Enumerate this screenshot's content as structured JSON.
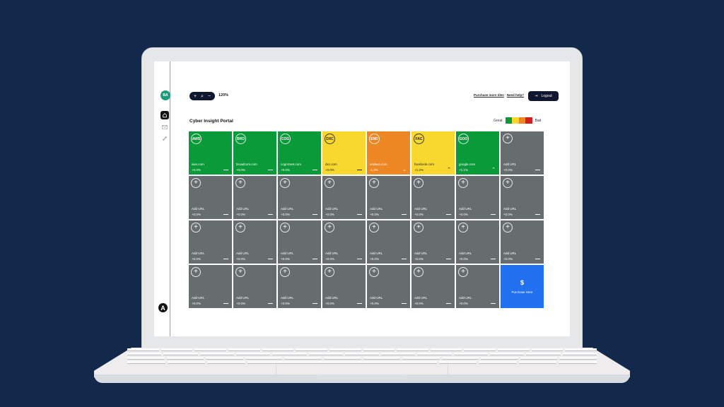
{
  "colors": {
    "background": "#13294b",
    "great": "#0b9a3a",
    "good": "#f8d72f",
    "warn": "#ec8723",
    "bad": "#d11f1f",
    "empty": "#676d6f",
    "purchase": "#2170f0",
    "dark": "#0e1630"
  },
  "sidebar": {
    "avatar_initials": "BA",
    "items": [
      {
        "name": "home",
        "icon": "home-icon",
        "active": true
      },
      {
        "name": "mail",
        "icon": "mail-icon"
      },
      {
        "name": "link",
        "icon": "link-icon"
      }
    ],
    "brand_logo": "A"
  },
  "toolbar": {
    "zoom_in": "+",
    "zoom_search": "⌕",
    "zoom_out": "−",
    "zoom_level": "120%"
  },
  "header": {
    "purchase_more_tiles": "Purchase more tiles",
    "need_help": "Need help?",
    "logout_icon": "⇥",
    "logout_label": "Logout"
  },
  "page": {
    "title": "Cyber Insight Portal",
    "legend": {
      "great_label": "Great",
      "bad_label": "Bad"
    }
  },
  "tiles": [
    {
      "ticker": "AWS",
      "url": "aws.com",
      "change": "+0.0%",
      "trend": "flat",
      "status": "green"
    },
    {
      "ticker": "BRO",
      "url": "broadcom.com",
      "change": "+0.0%",
      "trend": "flat",
      "status": "green"
    },
    {
      "ticker": "COG",
      "url": "cognizant.com",
      "change": "+0.0%",
      "trend": "flat",
      "status": "green"
    },
    {
      "ticker": "DXC",
      "url": "dxc.com",
      "change": "+0.0%",
      "trend": "flat",
      "status": "yellow"
    },
    {
      "ticker": "END",
      "url": "endava.com",
      "change": "-1.3%",
      "trend": "down",
      "status": "orange"
    },
    {
      "ticker": "FAC",
      "url": "facebook.com",
      "change": "+1.2%",
      "trend": "up",
      "status": "yellow"
    },
    {
      "ticker": "GOO",
      "url": "google.com",
      "change": "+1.1%",
      "trend": "up",
      "status": "green"
    }
  ],
  "empty_tile": {
    "label": "Add URL",
    "change": "+0.0%",
    "icon": "+"
  },
  "empty_tile_count": 24,
  "purchase_tile": {
    "icon": "$",
    "label": "Purchase Here"
  }
}
